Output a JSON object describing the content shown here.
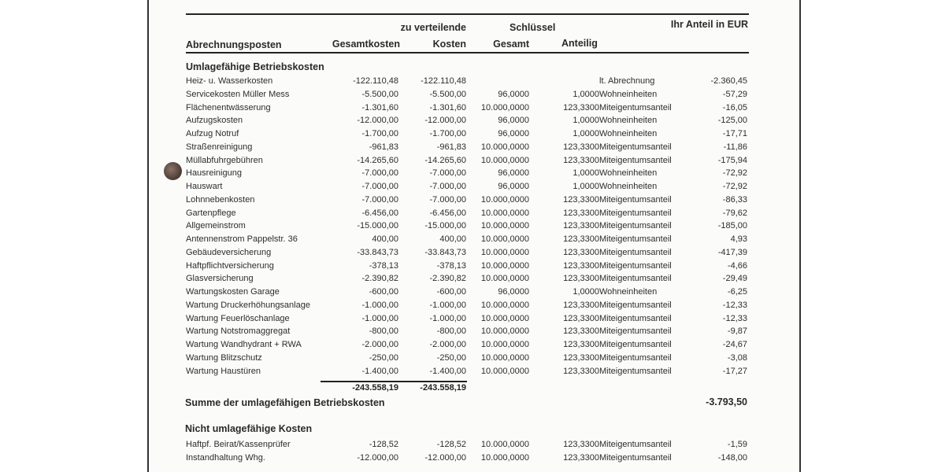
{
  "header": {
    "col_name": "Abrechnungsposten",
    "col_gesamtkosten": "Gesamtkosten",
    "col_zu_verteilende": "zu verteilende",
    "col_kosten": "Kosten",
    "col_schluessel": "Schlüssel",
    "col_gesamt": "Gesamt",
    "col_anteilig": "Anteilig",
    "col_ihr_anteil": "Ihr Anteil  in EUR"
  },
  "umlagefaehig": {
    "title": "Umlagefähige Betriebskosten",
    "rows": [
      {
        "name": "Heiz- u. Wasserkosten",
        "gesamtkosten": "-122.110,48",
        "kosten": "-122.110,48",
        "gesamt": "",
        "anteilig": "",
        "einheit": "lt. Abrechnung",
        "anteil": "-2.360,45"
      },
      {
        "name": "Servicekosten Müller Mess",
        "gesamtkosten": "-5.500,00",
        "kosten": "-5.500,00",
        "gesamt": "96,0000",
        "anteilig": "1,0000",
        "einheit": "Wohneinheiten",
        "anteil": "-57,29"
      },
      {
        "name": "Flächenentwässerung",
        "gesamtkosten": "-1.301,60",
        "kosten": "-1.301,60",
        "gesamt": "10.000,0000",
        "anteilig": "123,3300",
        "einheit": "Miteigentumsanteil",
        "anteil": "-16,05"
      },
      {
        "name": "Aufzugskosten",
        "gesamtkosten": "-12.000,00",
        "kosten": "-12.000,00",
        "gesamt": "96,0000",
        "anteilig": "1,0000",
        "einheit": "Wohneinheiten",
        "anteil": "-125,00"
      },
      {
        "name": "Aufzug Notruf",
        "gesamtkosten": "-1.700,00",
        "kosten": "-1.700,00",
        "gesamt": "96,0000",
        "anteilig": "1,0000",
        "einheit": "Wohneinheiten",
        "anteil": "-17,71"
      },
      {
        "name": "Straßenreinigung",
        "gesamtkosten": "-961,83",
        "kosten": "-961,83",
        "gesamt": "10.000,0000",
        "anteilig": "123,3300",
        "einheit": "Miteigentumsanteil",
        "anteil": "-11,86"
      },
      {
        "name": "Müllabfuhrgebühren",
        "gesamtkosten": "-14.265,60",
        "kosten": "-14.265,60",
        "gesamt": "10.000,0000",
        "anteilig": "123,3300",
        "einheit": "Miteigentumsanteil",
        "anteil": "-175,94"
      },
      {
        "name": "Hausreinigung",
        "gesamtkosten": "-7.000,00",
        "kosten": "-7.000,00",
        "gesamt": "96,0000",
        "anteilig": "1,0000",
        "einheit": "Wohneinheiten",
        "anteil": "-72,92"
      },
      {
        "name": "Hauswart",
        "gesamtkosten": "-7.000,00",
        "kosten": "-7.000,00",
        "gesamt": "96,0000",
        "anteilig": "1,0000",
        "einheit": "Wohneinheiten",
        "anteil": "-72,92"
      },
      {
        "name": "Lohnnebenkosten",
        "gesamtkosten": "-7.000,00",
        "kosten": "-7.000,00",
        "gesamt": "10.000,0000",
        "anteilig": "123,3300",
        "einheit": "Miteigentumsanteil",
        "anteil": "-86,33"
      },
      {
        "name": "Gartenpflege",
        "gesamtkosten": "-6.456,00",
        "kosten": "-6.456,00",
        "gesamt": "10.000,0000",
        "anteilig": "123,3300",
        "einheit": "Miteigentumsanteil",
        "anteil": "-79,62"
      },
      {
        "name": "Allgemeinstrom",
        "gesamtkosten": "-15.000,00",
        "kosten": "-15.000,00",
        "gesamt": "10.000,0000",
        "anteilig": "123,3300",
        "einheit": "Miteigentumsanteil",
        "anteil": "-185,00"
      },
      {
        "name": "Antennenstrom Pappelstr. 36",
        "gesamtkosten": "400,00",
        "kosten": "400,00",
        "gesamt": "10.000,0000",
        "anteilig": "123,3300",
        "einheit": "Miteigentumsanteil",
        "anteil": "4,93"
      },
      {
        "name": "Gebäudeversicherung",
        "gesamtkosten": "-33.843,73",
        "kosten": "-33.843,73",
        "gesamt": "10.000,0000",
        "anteilig": "123,3300",
        "einheit": "Miteigentumsanteil",
        "anteil": "-417,39"
      },
      {
        "name": "Haftpflichtversicherung",
        "gesamtkosten": "-378,13",
        "kosten": "-378,13",
        "gesamt": "10.000,0000",
        "anteilig": "123,3300",
        "einheit": "Miteigentumsanteil",
        "anteil": "-4,66"
      },
      {
        "name": "Glasversicherung",
        "gesamtkosten": "-2.390,82",
        "kosten": "-2.390,82",
        "gesamt": "10.000,0000",
        "anteilig": "123,3300",
        "einheit": "Miteigentumsanteil",
        "anteil": "-29,49"
      },
      {
        "name": "Wartungskosten Garage",
        "gesamtkosten": "-600,00",
        "kosten": "-600,00",
        "gesamt": "96,0000",
        "anteilig": "1,0000",
        "einheit": "Wohneinheiten",
        "anteil": "-6,25"
      },
      {
        "name": "Wartung Druckerhöhungsanlage",
        "gesamtkosten": "-1.000,00",
        "kosten": "-1.000,00",
        "gesamt": "10.000,0000",
        "anteilig": "123,3300",
        "einheit": "Miteigentumsanteil",
        "anteil": "-12,33"
      },
      {
        "name": "Wartung Feuerlöschanlage",
        "gesamtkosten": "-1.000,00",
        "kosten": "-1.000,00",
        "gesamt": "10.000,0000",
        "anteilig": "123,3300",
        "einheit": "Miteigentumsanteil",
        "anteil": "-12,33"
      },
      {
        "name": "Wartung Notstromaggregat",
        "gesamtkosten": "-800,00",
        "kosten": "-800,00",
        "gesamt": "10.000,0000",
        "anteilig": "123,3300",
        "einheit": "Miteigentumsanteil",
        "anteil": "-9,87"
      },
      {
        "name": "Wartung Wandhydrant + RWA",
        "gesamtkosten": "-2.000,00",
        "kosten": "-2.000,00",
        "gesamt": "10.000,0000",
        "anteilig": "123,3300",
        "einheit": "Miteigentumsanteil",
        "anteil": "-24,67"
      },
      {
        "name": "Wartung Blitzschutz",
        "gesamtkosten": "-250,00",
        "kosten": "-250,00",
        "gesamt": "10.000,0000",
        "anteilig": "123,3300",
        "einheit": "Miteigentumsanteil",
        "anteil": "-3,08"
      },
      {
        "name": "Wartung Haustüren",
        "gesamtkosten": "-1.400,00",
        "kosten": "-1.400,00",
        "gesamt": "10.000,0000",
        "anteilig": "123,3300",
        "einheit": "Miteigentumsanteil",
        "anteil": "-17,27"
      }
    ],
    "total_gesamtkosten": "-243.558,19",
    "total_kosten": "-243.558,19",
    "summe_label": "Summe der umlagefähigen Betriebskosten",
    "summe_anteil": "-3.793,50"
  },
  "nicht_umlagefaehig": {
    "title": "Nicht umlagefähige Kosten",
    "rows": [
      {
        "name": "Haftpf. Beirat/Kassenprüfer",
        "gesamtkosten": "-128,52",
        "kosten": "-128,52",
        "gesamt": "10.000,0000",
        "anteilig": "123,3300",
        "einheit": "Miteigentumsanteil",
        "anteil": "-1,59"
      },
      {
        "name": "Instandhaltung Whg.",
        "gesamtkosten": "-12.000,00",
        "kosten": "-12.000,00",
        "gesamt": "10.000,0000",
        "anteilig": "123,3300",
        "einheit": "Miteigentumsanteil",
        "anteil": "-148,00"
      }
    ]
  }
}
